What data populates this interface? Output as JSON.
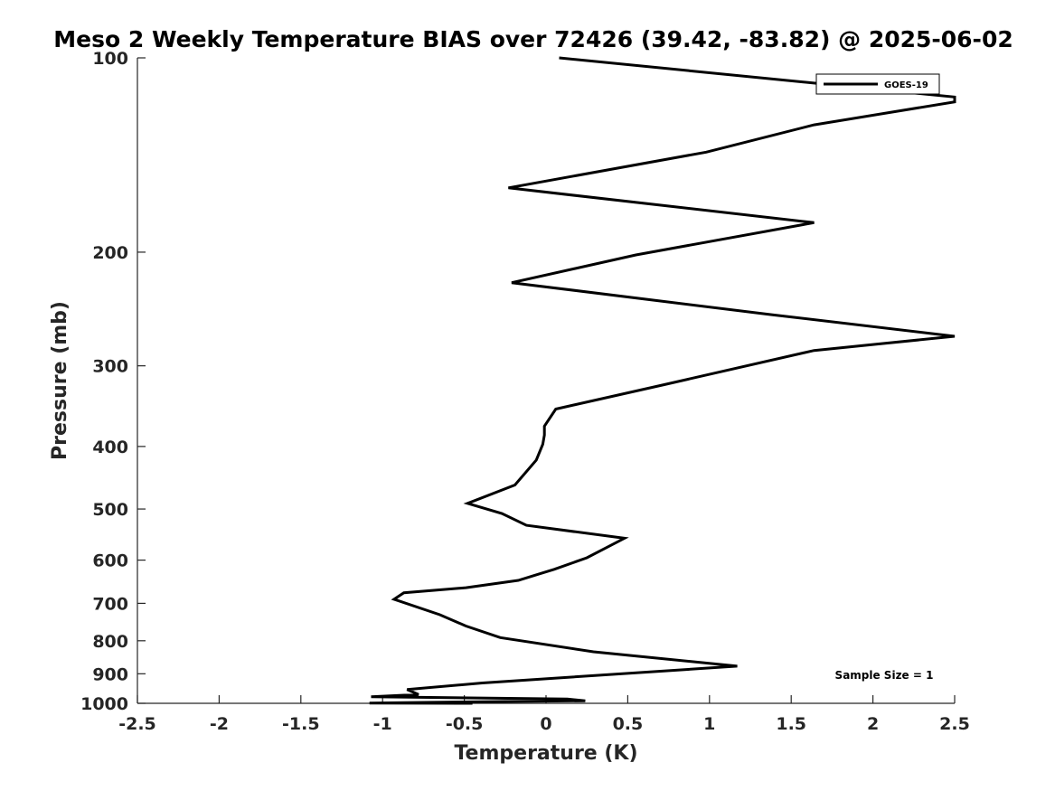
{
  "chart_data": {
    "type": "line",
    "title": "Meso 2 Weekly Temperature BIAS over 72426 (39.42, -83.82) @ 2025-06-02",
    "xlabel": "Temperature (K)",
    "ylabel": "Pressure (mb)",
    "xlim": [
      -2.5,
      2.5
    ],
    "ylim": [
      100,
      1000
    ],
    "y_scale": "log",
    "y_reversed": true,
    "xticks": [
      -2.5,
      -2,
      -1.5,
      -1,
      -0.5,
      0,
      0.5,
      1,
      1.5,
      2,
      2.5
    ],
    "xtick_labels": [
      "-2.5",
      "-2",
      "-1.5",
      "-1",
      "-0.5",
      "0",
      "0.5",
      "1",
      "1.5",
      "2",
      "2.5"
    ],
    "yticks": [
      100,
      200,
      300,
      400,
      500,
      600,
      700,
      800,
      900,
      1000
    ],
    "ytick_labels": [
      "100",
      "200",
      "300",
      "400",
      "500",
      "600",
      "700",
      "800",
      "900",
      "1000"
    ],
    "grid": false,
    "legend_position": "top-right",
    "annotation": "Sample Size = 1",
    "series": [
      {
        "name": "GOES-19",
        "color": "#000000",
        "x": [
          0.08,
          2.5,
          2.5,
          1.64,
          0.98,
          -0.23,
          1.64,
          0.55,
          -0.21,
          1.38,
          2.5,
          1.64,
          0.72,
          0.06,
          -0.01,
          -0.01,
          -0.02,
          -0.06,
          -0.19,
          -0.48,
          -0.27,
          -0.12,
          0.48,
          0.25,
          0.05,
          -0.17,
          -0.49,
          -0.87,
          -0.93,
          -0.65,
          -0.49,
          -0.28,
          0.29,
          1.17,
          -0.39,
          -0.85,
          -0.78,
          -1.07,
          0.13,
          0.24,
          -0.46,
          -1.08,
          -0.45
        ],
        "y": [
          100,
          115,
          117,
          127,
          140,
          159,
          180,
          202,
          223,
          250,
          270,
          284,
          321,
          350,
          372,
          384,
          397,
          420,
          459,
          490,
          508,
          530,
          555,
          595,
          620,
          645,
          662,
          674,
          690,
          729,
          759,
          791,
          832,
          876,
          930,
          952,
          969,
          977,
          985,
          991,
          995,
          999,
          1000
        ],
        "y_note": "levels in pressure (mb)"
      }
    ]
  }
}
